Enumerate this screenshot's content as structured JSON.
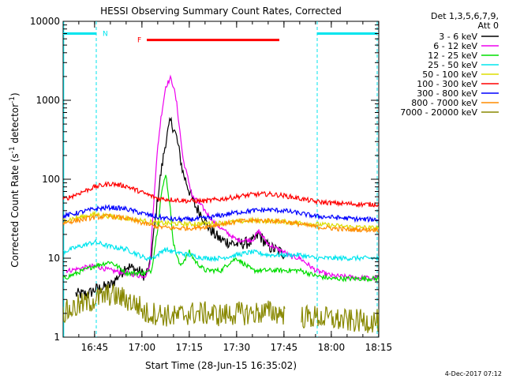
{
  "chart_data": {
    "type": "line",
    "title": "HESSI Observing Summary Count Rates, Corrected",
    "xlabel": "Start Time (28-Jun-15 16:35:02)",
    "ylabel": "Corrected Count Rate (s⁻¹ detector⁻¹)",
    "ylabel_main": "Corrected Count Rate (s",
    "ylabel_sup1": "-1",
    "ylabel_mid": " detector",
    "ylabel_sup2": "-1",
    "ylabel_end": ")",
    "y_scale": "log",
    "xlim_minutes": [
      0,
      100
    ],
    "ylim": [
      1,
      10000
    ],
    "x_ticks": [
      "16:45",
      "17:00",
      "17:15",
      "17:30",
      "17:45",
      "18:00",
      "18:15"
    ],
    "x_tick_minutes": [
      9.967,
      24.967,
      39.967,
      54.967,
      69.967,
      84.967,
      99.967
    ],
    "y_ticks": [
      "1",
      "10",
      "100",
      "1000",
      "10000"
    ],
    "y_tick_values": [
      1,
      10,
      100,
      1000,
      10000
    ],
    "legend_header": [
      "Det 1,3,5,6,7,9,",
      "Att 0"
    ],
    "legend_placement": "outside-right",
    "grid": false,
    "footer_date": "4-Dec-2017 07:12",
    "flags": [
      {
        "label": "N",
        "color": "#00e5ee",
        "segments": [
          [
            0,
            10.5
          ],
          [
            80.5,
            99.5
          ]
        ],
        "level": 7000
      },
      {
        "label": "F",
        "color": "#ff0000",
        "segments": [
          [
            26.5,
            68.5
          ]
        ],
        "level": 5800
      }
    ],
    "series": [
      {
        "name": "3 - 6 keV",
        "color": "#000000",
        "x": [
          0,
          8,
          10,
          15,
          19,
          20,
          23.5,
          26,
          27.5,
          29,
          30,
          31,
          32.5,
          34,
          35,
          36,
          38,
          41,
          42,
          44,
          46,
          48,
          50,
          55,
          60,
          62,
          65,
          67,
          69,
          70.5,
          71
        ],
        "y": [
          0,
          3.5,
          4,
          4.5,
          7,
          8,
          7,
          6,
          8,
          25,
          60,
          120,
          300,
          540,
          450,
          330,
          120,
          55,
          45,
          35,
          25,
          20,
          17,
          15,
          16,
          20,
          14,
          13,
          12,
          11,
          0
        ]
      },
      {
        "name": "6 - 12 keV",
        "color": "#ee00ee",
        "x": [
          0,
          2,
          10,
          15,
          20,
          24,
          26,
          27.5,
          29,
          30,
          31,
          32.5,
          34,
          35,
          36,
          38,
          41,
          42,
          44,
          46,
          48,
          50,
          55,
          60,
          62,
          65,
          68,
          70,
          72,
          75,
          80,
          85,
          90,
          100
        ],
        "y": [
          0,
          7,
          8,
          7,
          6.5,
          6,
          6,
          8,
          80,
          260,
          600,
          1500,
          1900,
          1500,
          900,
          180,
          60,
          55,
          45,
          35,
          28,
          24,
          17,
          17,
          22,
          15,
          13,
          12,
          10.5,
          10,
          7,
          6,
          5.8,
          5.5
        ]
      },
      {
        "name": "12 - 25 keV",
        "color": "#00dd00",
        "x": [
          0,
          10,
          15,
          19,
          20,
          24,
          26,
          28,
          30,
          31,
          32.5,
          34,
          35,
          37,
          38,
          40,
          42,
          45,
          50,
          53,
          55,
          60,
          65,
          70,
          75,
          80,
          85,
          90,
          100
        ],
        "y": [
          5.5,
          8,
          9,
          7,
          6.5,
          6.5,
          6.5,
          7,
          25,
          60,
          120,
          40,
          15,
          8,
          9,
          12,
          9,
          7,
          7,
          9,
          10,
          7,
          7,
          7,
          7,
          6,
          5.5,
          5.5,
          5.5
        ]
      },
      {
        "name": "25 - 50 keV",
        "color": "#00e5ee",
        "x": [
          0,
          5,
          10,
          15,
          20,
          24,
          26,
          28,
          30,
          32,
          35,
          40,
          45,
          50,
          55,
          60,
          65,
          70,
          75,
          80,
          85,
          90,
          95,
          100
        ],
        "y": [
          12,
          14,
          16,
          14,
          13,
          11,
          10,
          10,
          11,
          13,
          12,
          11,
          10,
          10,
          11,
          12,
          11,
          11,
          11,
          10,
          10,
          10,
          10,
          10
        ]
      },
      {
        "name": "50 - 100 keV",
        "color": "#dddd00",
        "x": [
          0,
          10,
          20,
          30,
          40,
          50,
          60,
          70,
          80,
          90,
          100
        ],
        "y": [
          30,
          36,
          32,
          28,
          27,
          28,
          30,
          29,
          27,
          25,
          24
        ]
      },
      {
        "name": "100 - 300 keV",
        "color": "#ff0000",
        "x": [
          0,
          10,
          15,
          20,
          25,
          30,
          35,
          40,
          45,
          50,
          55,
          60,
          65,
          70,
          75,
          80,
          85,
          90,
          95,
          100
        ],
        "y": [
          55,
          80,
          88,
          82,
          68,
          57,
          55,
          53,
          53,
          56,
          60,
          64,
          65,
          62,
          57,
          52,
          50,
          49,
          48,
          48
        ]
      },
      {
        "name": "300 - 800 keV",
        "color": "#0000ff",
        "x": [
          0,
          10,
          15,
          20,
          25,
          30,
          35,
          40,
          45,
          50,
          55,
          60,
          65,
          70,
          75,
          80,
          85,
          90,
          95,
          100
        ],
        "y": [
          34,
          42,
          44,
          42,
          37,
          33,
          31,
          31,
          32,
          35,
          38,
          40,
          41,
          40,
          37,
          34,
          33,
          32,
          31,
          31
        ]
      },
      {
        "name": "800 - 7000 keV",
        "color": "#ff8c00",
        "x": [
          0,
          10,
          15,
          20,
          25,
          30,
          35,
          40,
          45,
          50,
          55,
          60,
          65,
          70,
          75,
          80,
          85,
          90,
          95,
          100
        ],
        "y": [
          28,
          33,
          34,
          32,
          28,
          25,
          24,
          24,
          25,
          27,
          29,
          30,
          30,
          29,
          27,
          25,
          24,
          23,
          23,
          23
        ]
      },
      {
        "name": "7000 - 20000 keV",
        "color": "#888800",
        "x": [
          0,
          5,
          10,
          15,
          20,
          24,
          26,
          28,
          30,
          35,
          40,
          45,
          50,
          55,
          60,
          65,
          70,
          71,
          80,
          85,
          90,
          95,
          100
        ],
        "y": [
          2,
          2.5,
          3,
          3.5,
          3,
          2.5,
          2,
          2,
          2,
          1.8,
          2,
          2,
          1.9,
          2,
          2,
          2.1,
          2,
          0,
          1.8,
          1.7,
          1.6,
          1.6,
          1.6
        ]
      }
    ]
  }
}
